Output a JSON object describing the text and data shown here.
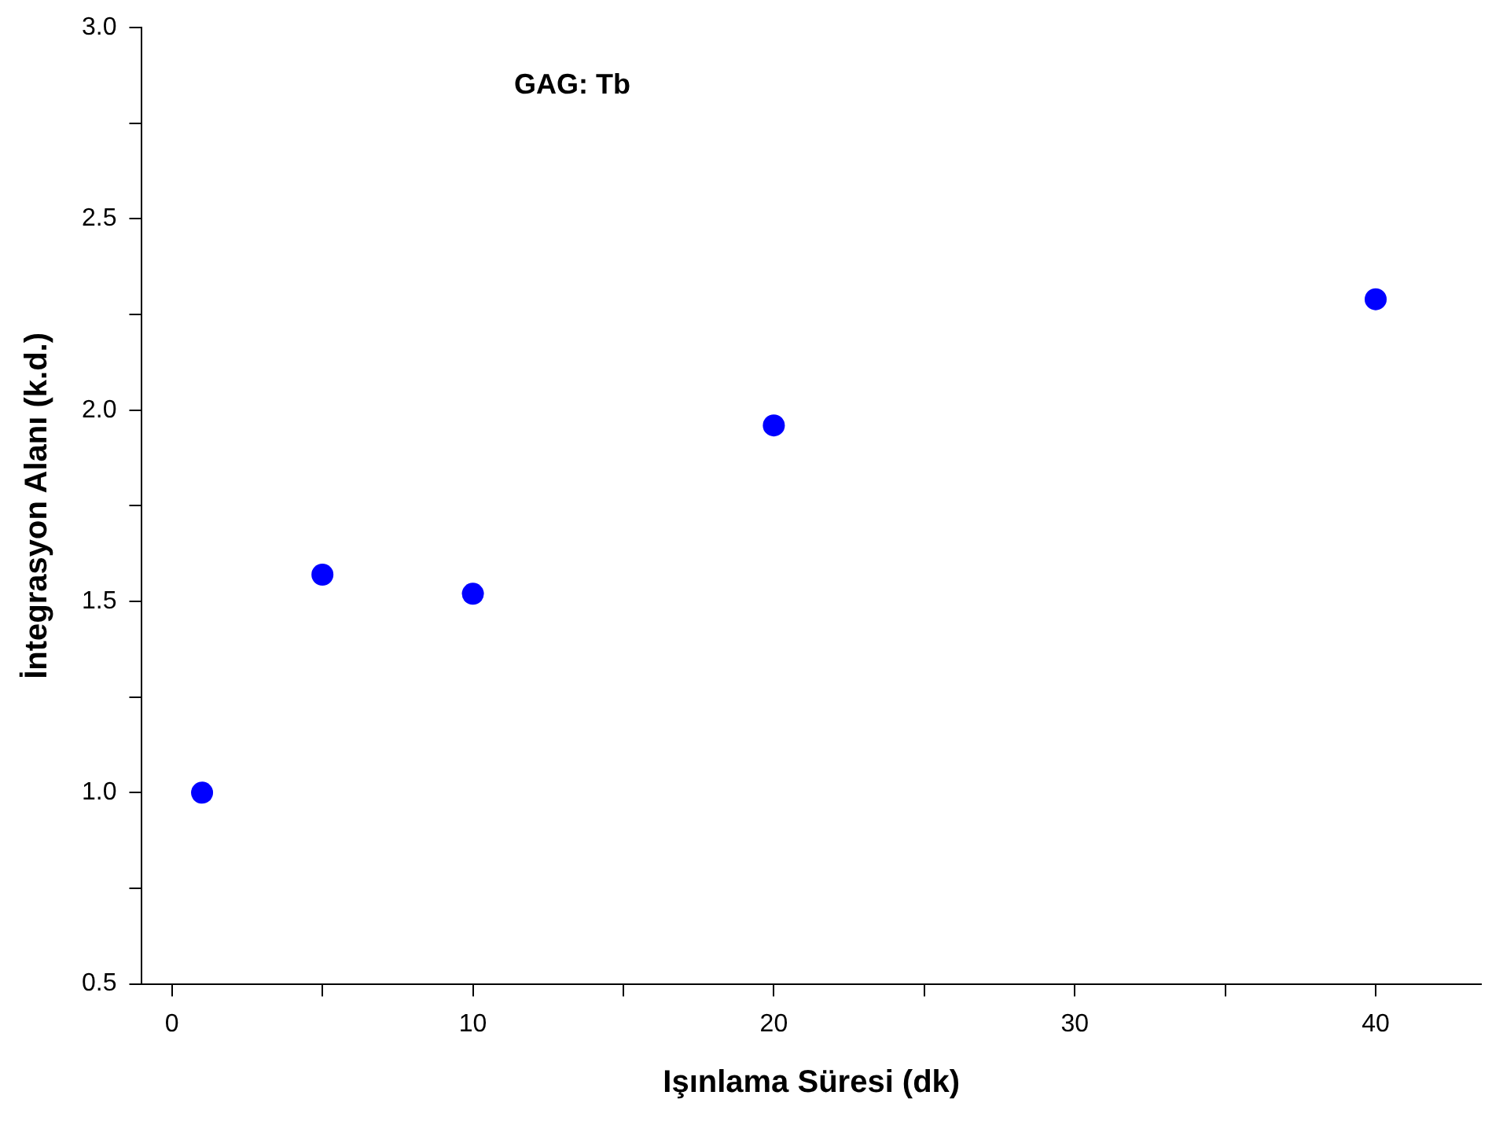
{
  "chart_data": {
    "type": "scatter",
    "title": "GAG: Tb",
    "xlabel": "Işınlama Süresi (dk)",
    "ylabel": "İntegrasyon Alanı (k.d.)",
    "x": [
      1,
      5,
      10,
      20,
      40
    ],
    "series": [
      {
        "color": "#0000ff",
        "values": [
          1.0,
          1.57,
          1.52,
          1.96,
          2.29
        ]
      }
    ],
    "xlim": [
      -1,
      43.5
    ],
    "xticks": [
      0,
      {
        "value": 5,
        "label": null
      },
      10,
      {
        "value": 15,
        "label": null
      },
      20,
      {
        "value": 25,
        "label": null
      },
      30,
      {
        "value": 35,
        "label": null
      },
      40
    ],
    "ylim": [
      0.5,
      3.0
    ],
    "yticks": [
      {
        "value": 0.5,
        "label": "0.5"
      },
      {
        "value": 0.75,
        "label": null
      },
      {
        "value": 1.0,
        "label": "1.0"
      },
      {
        "value": 1.25,
        "label": null
      },
      {
        "value": 1.5,
        "label": "1.5"
      },
      {
        "value": 1.75,
        "label": null
      },
      {
        "value": 2.0,
        "label": "2.0"
      },
      {
        "value": 2.25,
        "label": null
      },
      {
        "value": 2.5,
        "label": "2.5"
      },
      {
        "value": 2.75,
        "label": null
      },
      {
        "value": 3.0,
        "label": "3.0"
      }
    ],
    "grid": false,
    "legend": false,
    "marker": "circle"
  }
}
